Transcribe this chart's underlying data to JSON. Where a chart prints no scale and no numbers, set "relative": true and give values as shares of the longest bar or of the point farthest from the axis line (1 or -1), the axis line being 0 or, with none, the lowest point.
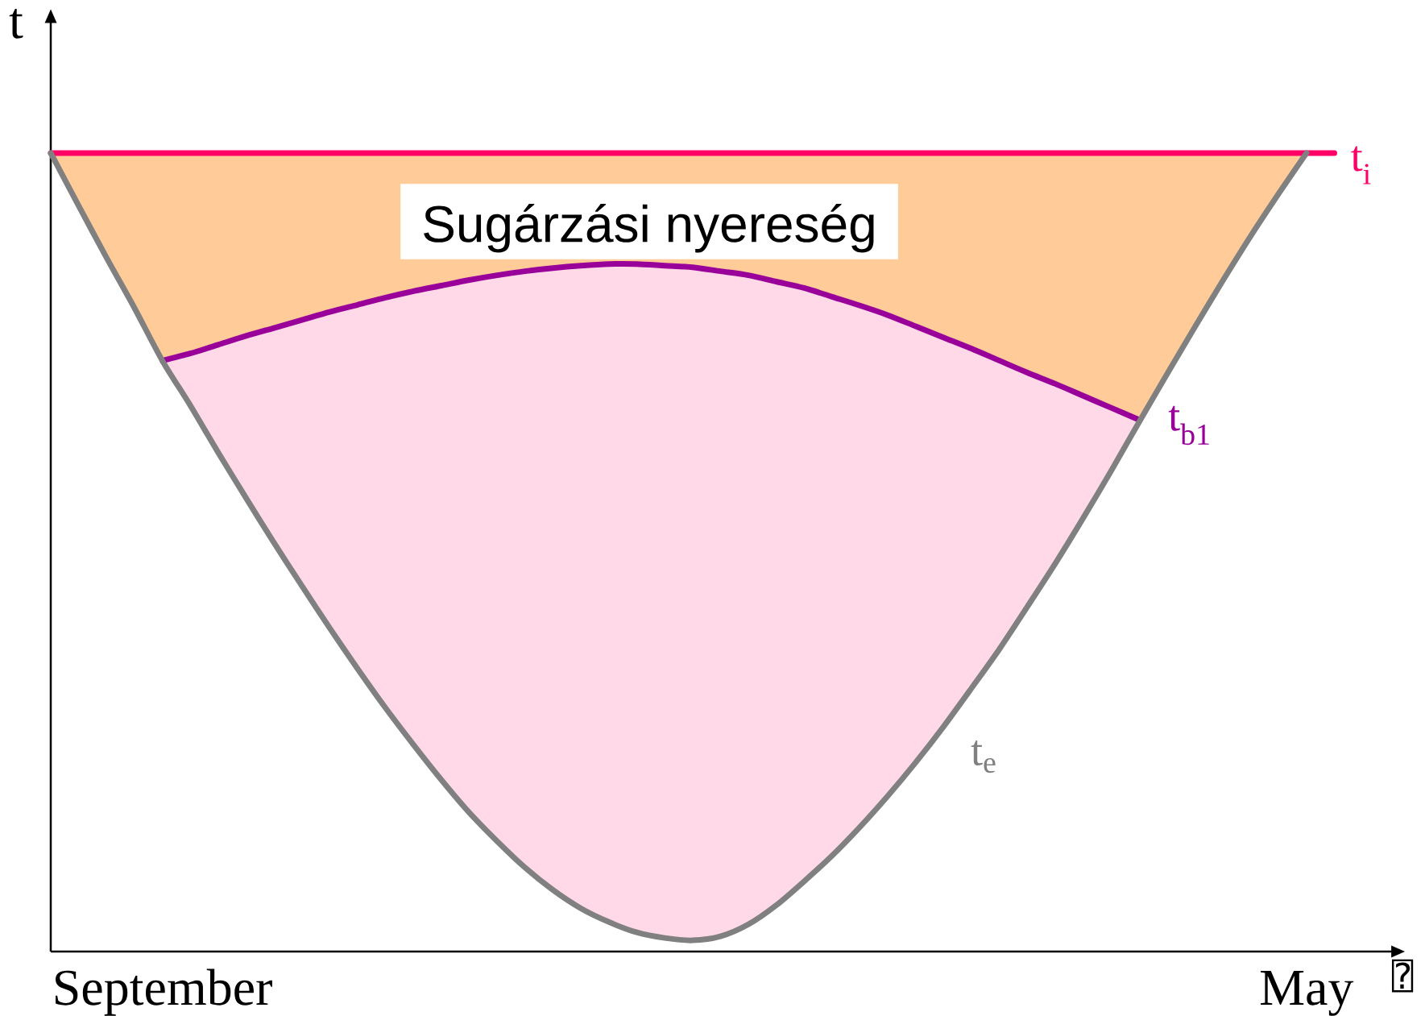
{
  "chart_data": {
    "type": "line",
    "relative": true,
    "ylabel": "t",
    "xlabel": "⍰",
    "categories": [
      null,
      null,
      null,
      null,
      "September",
      null,
      null,
      null,
      null,
      null,
      null,
      null,
      null,
      null,
      null,
      null,
      null,
      null,
      null,
      null,
      null,
      null,
      null,
      null,
      null,
      null,
      null,
      null,
      null,
      null,
      null,
      null,
      null,
      null,
      null,
      null,
      null,
      null,
      null,
      null,
      null,
      null,
      null,
      null,
      null,
      "May",
      null
    ],
    "annotations": [
      "Sugárzási nyereség"
    ],
    "series": [
      {
        "name": "t$_{i}$",
        "color": "#ff0066",
        "values": [
          1,
          1,
          1,
          1,
          1,
          1,
          1,
          1,
          1,
          1,
          1,
          1,
          1,
          1,
          1,
          1,
          1,
          1,
          1,
          1,
          1,
          1,
          1,
          1,
          1,
          1,
          1,
          1,
          1,
          1,
          1,
          1,
          1,
          1,
          1,
          1,
          1,
          1,
          1,
          1,
          1,
          1,
          1,
          1,
          1,
          1,
          1
        ],
        "lower": [
          1,
          0.934,
          0.869,
          0.806,
          0.74,
          0.749,
          0.76,
          0.771,
          0.781,
          0.791,
          0.801,
          0.81,
          0.819,
          0.827,
          0.834,
          0.841,
          0.847,
          0.852,
          0.856,
          0.859,
          0.861,
          0.861,
          0.859,
          0.857,
          0.852,
          0.847,
          0.839,
          0.831,
          0.82,
          0.809,
          0.797,
          0.783,
          0.769,
          0.755,
          0.74,
          0.725,
          0.711,
          0.696,
          0.681,
          0.666,
          0.723,
          0.782,
          0.84,
          0.896,
          0.949,
          1,
          null
        ],
        "upper": [
          1,
          1,
          1,
          1,
          1,
          1,
          1,
          1,
          1,
          1,
          1,
          1,
          1,
          1,
          1,
          1,
          1,
          1,
          1,
          1,
          1,
          1,
          1,
          1,
          1,
          1,
          1,
          1,
          1,
          1,
          1,
          1,
          1,
          1,
          1,
          1,
          1,
          1,
          1,
          1,
          1,
          1,
          1,
          1,
          1,
          1,
          null
        ]
      },
      {
        "name": "t$_{b1}$",
        "color": "#990099",
        "values": [
          null,
          null,
          null,
          null,
          0.74,
          0.749,
          0.76,
          0.771,
          0.781,
          0.791,
          0.801,
          0.81,
          0.819,
          0.827,
          0.834,
          0.841,
          0.847,
          0.852,
          0.856,
          0.859,
          0.861,
          0.861,
          0.859,
          0.857,
          0.852,
          0.847,
          0.839,
          0.831,
          0.82,
          0.809,
          0.797,
          0.783,
          0.769,
          0.755,
          0.74,
          0.725,
          0.711,
          0.696,
          0.681,
          0.666,
          null,
          null,
          null,
          null,
          null,
          null,
          null
        ],
        "lower": [
          null,
          null,
          null,
          null,
          0.74,
          0.684,
          0.625,
          0.568,
          0.512,
          0.458,
          0.405,
          0.354,
          0.305,
          0.259,
          0.215,
          0.174,
          0.138,
          0.105,
          0.077,
          0.054,
          0.037,
          0.024,
          0.017,
          0.014,
          0.019,
          0.034,
          0.058,
          0.088,
          0.12,
          0.156,
          0.195,
          0.237,
          0.282,
          0.33,
          0.379,
          0.432,
          0.486,
          0.543,
          0.602,
          0.663,
          null,
          null,
          null,
          null,
          null,
          null,
          null
        ],
        "upper": [
          null,
          null,
          null,
          null,
          0.74,
          0.749,
          0.76,
          0.771,
          0.781,
          0.791,
          0.801,
          0.81,
          0.819,
          0.827,
          0.834,
          0.841,
          0.847,
          0.852,
          0.856,
          0.859,
          0.861,
          0.861,
          0.859,
          0.857,
          0.852,
          0.847,
          0.839,
          0.831,
          0.82,
          0.809,
          0.797,
          0.783,
          0.769,
          0.755,
          0.74,
          0.725,
          0.711,
          0.696,
          0.681,
          0.666,
          null,
          null,
          null,
          null,
          null,
          null,
          null
        ]
      },
      {
        "name": "t$_{e}$",
        "color": "#808080",
        "values": [
          1,
          0.934,
          0.869,
          0.806,
          0.74,
          0.684,
          0.625,
          0.568,
          0.512,
          0.458,
          0.405,
          0.354,
          0.305,
          0.259,
          0.215,
          0.174,
          0.138,
          0.105,
          0.077,
          0.054,
          0.037,
          0.024,
          0.017,
          0.014,
          0.019,
          0.034,
          0.058,
          0.088,
          0.12,
          0.156,
          0.195,
          0.237,
          0.282,
          0.33,
          0.379,
          0.432,
          0.486,
          0.543,
          0.602,
          0.663,
          0.723,
          0.782,
          0.84,
          0.896,
          0.949,
          1,
          null
        ]
      }
    ]
  }
}
